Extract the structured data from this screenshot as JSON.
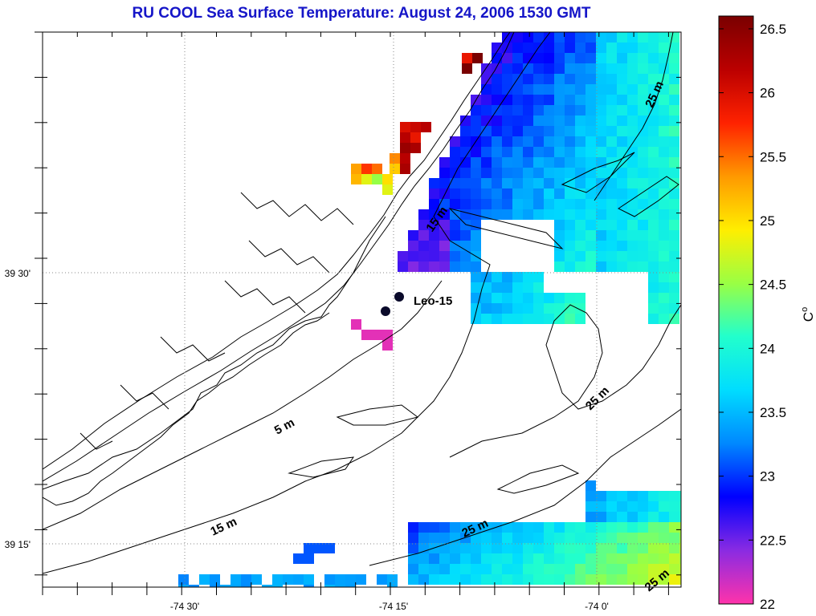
{
  "title": "RU COOL  Sea Surface Temperature:  August 24, 2006 1530 GMT",
  "map": {
    "lon_labels": [
      "-74 30'",
      "-74 15'",
      "-74 0'"
    ],
    "lat_labels": [
      "39 30'",
      "39 15'"
    ],
    "contour_labels": [
      "5 m",
      "15 m",
      "15 m",
      "25 m",
      "25 m",
      "25 m",
      "25 m"
    ],
    "station": {
      "name": "Leo-15"
    }
  },
  "colorbar": {
    "unit": "C",
    "unit_superscript": "o",
    "tick_labels": [
      "26.5",
      "26",
      "25.5",
      "25",
      "24.5",
      "24",
      "23.5",
      "23",
      "22.5",
      "22"
    ],
    "range": [
      22,
      26.6
    ],
    "colors": [
      "#ff33aa",
      "#8a2be2",
      "#0000ff",
      "#0088ff",
      "#00ddff",
      "#22ffcc",
      "#99ff44",
      "#ffee00",
      "#ff9900",
      "#ff2200",
      "#bb0000",
      "#7a0000"
    ]
  },
  "colors": {
    "title": "#1515c8",
    "frame": "#000000",
    "grid": "#888888"
  }
}
